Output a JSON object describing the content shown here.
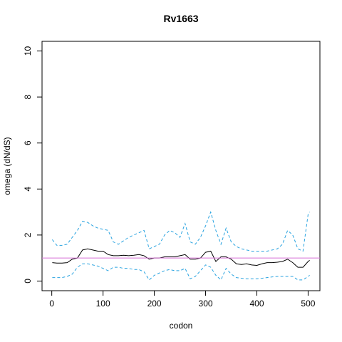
{
  "chart_data": {
    "type": "line",
    "title": "Rv1663",
    "x_label": "codon",
    "y_label": "omega (dN/dS)",
    "x": [
      1,
      10,
      20,
      30,
      40,
      50,
      60,
      70,
      80,
      90,
      100,
      110,
      120,
      130,
      140,
      150,
      160,
      170,
      180,
      190,
      200,
      210,
      220,
      230,
      240,
      250,
      260,
      270,
      280,
      290,
      300,
      310,
      320,
      330,
      340,
      350,
      360,
      370,
      380,
      390,
      400,
      410,
      420,
      430,
      440,
      450,
      460,
      470,
      480,
      490,
      500,
      503
    ],
    "series": [
      {
        "color": "#000000",
        "dash": false,
        "values": [
          0.8,
          0.78,
          0.78,
          0.8,
          0.95,
          1.0,
          1.35,
          1.4,
          1.35,
          1.3,
          1.3,
          1.15,
          1.1,
          1.1,
          1.12,
          1.1,
          1.12,
          1.15,
          1.1,
          0.95,
          1.0,
          1.0,
          1.05,
          1.05,
          1.05,
          1.1,
          1.15,
          0.95,
          0.95,
          1.0,
          1.25,
          1.3,
          0.85,
          1.05,
          1.05,
          0.95,
          0.75,
          0.72,
          0.75,
          0.7,
          0.68,
          0.75,
          0.8,
          0.8,
          0.82,
          0.85,
          0.95,
          0.8,
          0.6,
          0.6,
          0.85,
          0.9
        ]
      },
      {
        "color": "#29a3e0",
        "dash": true,
        "values": [
          1.8,
          1.55,
          1.55,
          1.6,
          1.9,
          2.2,
          2.6,
          2.55,
          2.4,
          2.3,
          2.25,
          2.2,
          1.7,
          1.6,
          1.75,
          1.9,
          2.0,
          2.1,
          2.2,
          1.4,
          1.5,
          1.6,
          2.0,
          2.2,
          2.1,
          1.9,
          2.5,
          1.7,
          1.6,
          1.9,
          2.4,
          3.0,
          2.2,
          1.6,
          2.3,
          1.7,
          1.5,
          1.4,
          1.35,
          1.3,
          1.3,
          1.3,
          1.3,
          1.35,
          1.4,
          1.6,
          2.2,
          2.0,
          1.4,
          1.3,
          2.9,
          3.0
        ]
      },
      {
        "color": "#29a3e0",
        "dash": true,
        "values": [
          0.15,
          0.15,
          0.15,
          0.2,
          0.3,
          0.6,
          0.75,
          0.75,
          0.7,
          0.65,
          0.55,
          0.45,
          0.6,
          0.6,
          0.55,
          0.55,
          0.5,
          0.5,
          0.4,
          0.05,
          0.25,
          0.35,
          0.45,
          0.5,
          0.45,
          0.45,
          0.55,
          0.1,
          0.2,
          0.45,
          0.7,
          0.6,
          0.25,
          0.05,
          0.55,
          0.3,
          0.15,
          0.12,
          0.1,
          0.1,
          0.1,
          0.12,
          0.15,
          0.18,
          0.2,
          0.2,
          0.2,
          0.2,
          0.05,
          0.05,
          0.2,
          0.25
        ]
      }
    ],
    "reference_line": {
      "value": 1,
      "color": "#d670d6"
    },
    "xlim": [
      -19,
      523
    ],
    "ylim": [
      -0.42,
      10.42
    ],
    "xticks": [
      0,
      100,
      200,
      300,
      400,
      500
    ],
    "yticks": [
      0,
      2,
      4,
      6,
      8,
      10
    ]
  }
}
